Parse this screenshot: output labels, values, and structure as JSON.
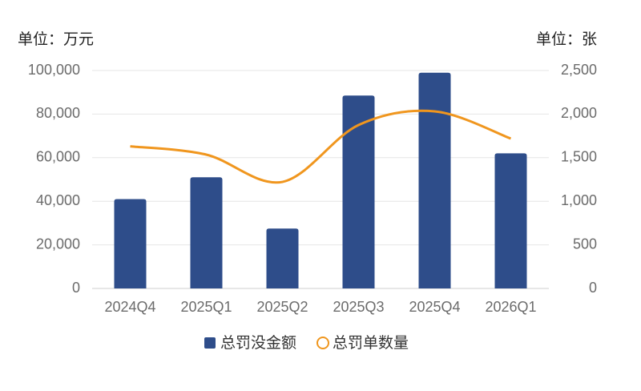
{
  "chart_data": {
    "type": "bar-line",
    "y_unit_label": "单位：万元",
    "y2_unit_label": "单位：张",
    "categories": [
      "2024Q4",
      "2025Q1",
      "2025Q2",
      "2025Q3",
      "2025Q4",
      "2026Q1"
    ],
    "series": [
      {
        "name": "总罚没金额",
        "type": "bar",
        "color": "#2e4d8a",
        "values": [
          41000,
          51000,
          27500,
          88500,
          99000,
          62000
        ]
      },
      {
        "name": "总罚单数量",
        "type": "line",
        "axis": "y2",
        "color": "#f0961e",
        "smooth": true,
        "values": [
          1630,
          1535,
          1222,
          1875,
          2031,
          1719
        ]
      }
    ],
    "ylim": [
      0,
      100000
    ],
    "yticks": [
      0,
      {
        "value": 20000,
        "label": "20,000"
      },
      {
        "value": 40000,
        "label": "40,000"
      },
      {
        "value": 60000,
        "label": "60,000"
      },
      {
        "value": 80000,
        "label": "80,000"
      },
      {
        "value": 100000,
        "label": "100,000"
      }
    ],
    "y2lim": [
      0,
      2500
    ],
    "y2ticks": [
      0,
      500,
      {
        "value": 1000,
        "label": "1,000"
      },
      {
        "value": 1500,
        "label": "1,500"
      },
      {
        "value": 2000,
        "label": "2,000"
      },
      {
        "value": 2500,
        "label": "2,500"
      }
    ],
    "grid": true
  }
}
